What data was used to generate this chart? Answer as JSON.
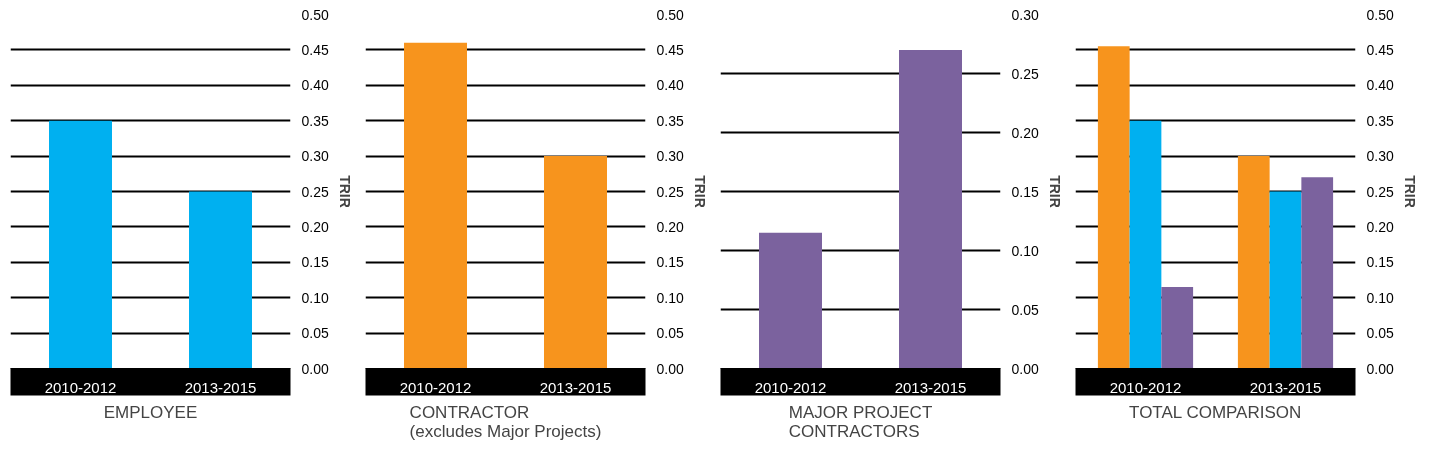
{
  "chart_data": [
    {
      "type": "bar",
      "title": "EMPLOYEE",
      "categories": [
        "2010-2012",
        "2013-2015"
      ],
      "values": [
        0.35,
        0.25
      ],
      "color": "#00b0f0",
      "ylabel": "TRIR",
      "ylim": [
        0,
        0.5
      ],
      "yticks": [
        {
          "value": 0,
          "label": "0.00"
        },
        {
          "value": 0.05,
          "label": "0.05"
        },
        {
          "value": 0.1,
          "label": "0.10"
        },
        {
          "value": 0.15,
          "label": "0.15"
        },
        {
          "value": 0.2,
          "label": "0.20"
        },
        {
          "value": 0.25,
          "label": "0.25"
        },
        {
          "value": 0.3,
          "label": "0.30"
        },
        {
          "value": 0.35,
          "label": "0.35"
        },
        {
          "value": 0.4,
          "label": "0.40"
        },
        {
          "value": 0.45,
          "label": "0.45"
        },
        {
          "value": 0.5,
          "label": "0.50"
        }
      ],
      "grid": "y"
    },
    {
      "type": "bar",
      "title": "CONTRACTOR\n(excludes Major Projects)",
      "categories": [
        "2010-2012",
        "2013-2015"
      ],
      "values": [
        0.46,
        0.3
      ],
      "color": "#f7941d",
      "ylabel": "TRIR",
      "ylim": [
        0,
        0.5
      ],
      "yticks": [
        {
          "value": 0,
          "label": "0.00"
        },
        {
          "value": 0.05,
          "label": "0.05"
        },
        {
          "value": 0.1,
          "label": "0.10"
        },
        {
          "value": 0.15,
          "label": "0.15"
        },
        {
          "value": 0.2,
          "label": "0.20"
        },
        {
          "value": 0.25,
          "label": "0.25"
        },
        {
          "value": 0.3,
          "label": "0.30"
        },
        {
          "value": 0.35,
          "label": "0.35"
        },
        {
          "value": 0.4,
          "label": "0.40"
        },
        {
          "value": 0.45,
          "label": "0.45"
        },
        {
          "value": 0.5,
          "label": "0.50"
        }
      ],
      "grid": "y"
    },
    {
      "type": "bar",
      "title": "MAJOR PROJECT\nCONTRACTORS",
      "categories": [
        "2010-2012",
        "2013-2015"
      ],
      "values": [
        0.115,
        0.27
      ],
      "color": "#7b629e",
      "ylabel": "TRIR",
      "ylim": [
        0,
        0.3
      ],
      "yticks": [
        {
          "value": 0,
          "label": "0.00"
        },
        {
          "value": 0.05,
          "label": "0.05"
        },
        {
          "value": 0.1,
          "label": "0.10"
        },
        {
          "value": 0.15,
          "label": "0.15"
        },
        {
          "value": 0.2,
          "label": "0.20"
        },
        {
          "value": 0.25,
          "label": "0.25"
        },
        {
          "value": 0.3,
          "label": "0.30"
        }
      ],
      "grid": "y"
    },
    {
      "type": "bar",
      "title": "TOTAL COMPARISON",
      "categories": [
        "2010-2012",
        "2013-2015"
      ],
      "series": [
        {
          "color": "#f7941d",
          "values": [
            0.455,
            0.3
          ]
        },
        {
          "color": "#00b0f0",
          "values": [
            0.35,
            0.25
          ]
        },
        {
          "color": "#7b629e",
          "values": [
            0.115,
            0.27
          ]
        }
      ],
      "ylabel": "TRIR",
      "ylim": [
        0,
        0.5
      ],
      "yticks": [
        {
          "value": 0,
          "label": "0.00"
        },
        {
          "value": 0.05,
          "label": "0.05"
        },
        {
          "value": 0.1,
          "label": "0.10"
        },
        {
          "value": 0.15,
          "label": "0.15"
        },
        {
          "value": 0.2,
          "label": "0.20"
        },
        {
          "value": 0.25,
          "label": "0.25"
        },
        {
          "value": 0.3,
          "label": "0.30"
        },
        {
          "value": 0.35,
          "label": "0.35"
        },
        {
          "value": 0.4,
          "label": "0.40"
        },
        {
          "value": 0.45,
          "label": "0.45"
        },
        {
          "value": 0.5,
          "label": "0.50"
        }
      ],
      "grid": "y"
    }
  ]
}
